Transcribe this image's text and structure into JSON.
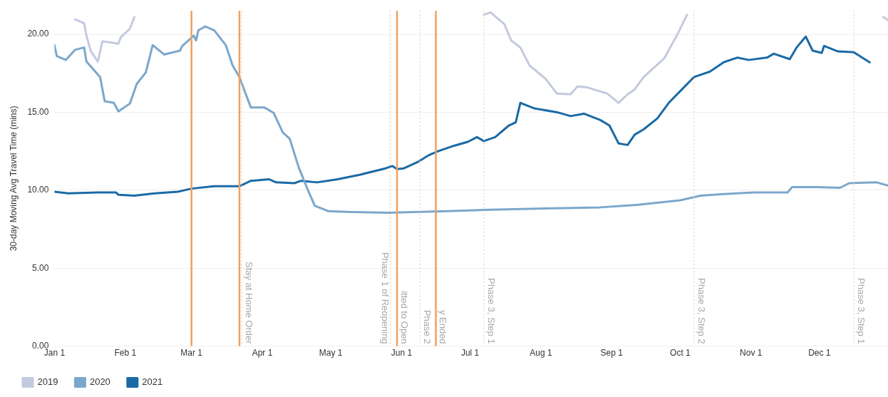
{
  "chart_data": {
    "type": "line",
    "ylabel": "30-day Moving Avg Travel Time (mins)",
    "xlim": [
      "--01-01",
      "--12-31"
    ],
    "xticks": [
      {
        "value": "--01-01",
        "label": "Jan 1"
      },
      {
        "value": "--02-01",
        "label": "Feb 1"
      },
      {
        "value": "--03-01",
        "label": "Mar 1"
      },
      {
        "value": "--04-01",
        "label": "Apr 1"
      },
      {
        "value": "--05-01",
        "label": "May 1"
      },
      {
        "value": "--06-01",
        "label": "Jun 1"
      },
      {
        "value": "--07-01",
        "label": "Jul 1"
      },
      {
        "value": "--08-01",
        "label": "Aug 1"
      },
      {
        "value": "--09-01",
        "label": "Sep 1"
      },
      {
        "value": "--10-01",
        "label": "Oct 1"
      },
      {
        "value": "--11-01",
        "label": "Nov 1"
      },
      {
        "value": "--12-01",
        "label": "Dec 1"
      }
    ],
    "ylim": [
      0,
      21.5
    ],
    "yticks": [
      {
        "value": 0,
        "label": "0.00"
      },
      {
        "value": 5,
        "label": "5.00"
      },
      {
        "value": 10,
        "label": "10.00"
      },
      {
        "value": 15,
        "label": "15.00"
      },
      {
        "value": 20,
        "label": "20.00"
      }
    ],
    "grid": "y",
    "legend": "bottom left",
    "marker": "none",
    "line_style": "solid",
    "series": [
      {
        "name": "2019",
        "color": "#c3cadf",
        "x": [
          "--01-10",
          "--01-14",
          "--01-15",
          "--01-17",
          "--01-20",
          "--01-22",
          "--01-29",
          "--01-30",
          "--02-03",
          "--02-05",
          "--03-01",
          "--07-07",
          "--07-10",
          "--07-16",
          "--07-19",
          "--07-23",
          "--07-27",
          "--08-03",
          "--08-08",
          "--08-14",
          "--08-17",
          "--08-21",
          "--08-30",
          "--09-04",
          "--09-08",
          "--09-11",
          "--09-15",
          "--09-24",
          "--09-30",
          "--10-04",
          "--11-01",
          "--12-29",
          "--12-31"
        ],
        "values": [
          20.95,
          20.7,
          19.9,
          18.9,
          18.25,
          19.55,
          19.4,
          19.8,
          20.35,
          21.1,
          null,
          21.25,
          21.4,
          20.65,
          19.6,
          19.15,
          18.0,
          17.15,
          16.2,
          16.15,
          16.65,
          16.6,
          16.2,
          15.6,
          16.15,
          16.45,
          17.25,
          18.45,
          20.05,
          21.25,
          null,
          21.1,
          20.9
        ]
      },
      {
        "name": "2020",
        "color": "#7ba7cc",
        "x": [
          "--01-01",
          "--01-02",
          "--01-06",
          "--01-10",
          "--01-14",
          "--01-15",
          "--01-21",
          "--01-23",
          "--01-27",
          "--01-29",
          "--02-03",
          "--02-06",
          "--02-10",
          "--02-13",
          "--02-18",
          "--02-25",
          "--02-26",
          "--03-02",
          "--03-03",
          "--03-04",
          "--03-07",
          "--03-11",
          "--03-16",
          "--03-19",
          "--03-22",
          "--03-27",
          "--04-02",
          "--04-06",
          "--04-10",
          "--04-13",
          "--04-17",
          "--04-21",
          "--04-24",
          "--04-30",
          "--05-10",
          "--05-26",
          "--06-21",
          "--07-10",
          "--08-11",
          "--08-27",
          "--09-12",
          "--10-01",
          "--10-10",
          "--10-20",
          "--11-02",
          "--11-17",
          "--11-19",
          "--11-30",
          "--12-10",
          "--12-14",
          "--12-26",
          "--12-31"
        ],
        "values": [
          19.3,
          18.6,
          18.35,
          19.0,
          19.15,
          18.25,
          17.25,
          15.7,
          15.6,
          15.05,
          15.55,
          16.8,
          17.55,
          19.3,
          18.7,
          18.95,
          19.25,
          19.9,
          19.6,
          20.25,
          20.5,
          20.25,
          19.3,
          18.0,
          17.25,
          15.3,
          15.3,
          14.95,
          13.7,
          13.3,
          11.45,
          10.0,
          9.0,
          8.65,
          8.6,
          8.55,
          8.65,
          8.75,
          8.85,
          8.9,
          9.05,
          9.35,
          9.65,
          9.75,
          9.85,
          9.85,
          10.2,
          10.2,
          10.15,
          10.45,
          10.5,
          10.3
        ]
      },
      {
        "name": "2021",
        "color": "#1a6aa5",
        "x": [
          "--01-01",
          "--01-07",
          "--01-20",
          "--01-28",
          "--01-29",
          "--02-05",
          "--02-14",
          "--02-24",
          "--03-01",
          "--03-11",
          "--03-22",
          "--03-27",
          "--04-04",
          "--04-07",
          "--04-15",
          "--04-18",
          "--04-25",
          "--05-04",
          "--05-14",
          "--05-25",
          "--05-28",
          "--05-30",
          "--06-02",
          "--06-08",
          "--06-13",
          "--06-17",
          "--06-24",
          "--06-30",
          "--07-04",
          "--07-07",
          "--07-12",
          "--07-18",
          "--07-21",
          "--07-23",
          "--07-29",
          "--08-08",
          "--08-14",
          "--08-20",
          "--08-27",
          "--08-31",
          "--09-04",
          "--09-08",
          "--09-11",
          "--09-15",
          "--09-21",
          "--09-26",
          "--10-01",
          "--10-07",
          "--10-14",
          "--10-20",
          "--10-26",
          "--10-31",
          "--11-08",
          "--11-11",
          "--11-18",
          "--11-21",
          "--11-25",
          "--11-28",
          "--12-02",
          "--12-03",
          "--12-09",
          "--12-16",
          "--12-23"
        ],
        "values": [
          9.9,
          9.8,
          9.85,
          9.85,
          9.7,
          9.65,
          9.8,
          9.9,
          10.1,
          10.25,
          10.25,
          10.6,
          10.7,
          10.5,
          10.45,
          10.6,
          10.5,
          10.7,
          11.0,
          11.4,
          11.55,
          11.35,
          11.4,
          11.8,
          12.25,
          12.5,
          12.85,
          13.1,
          13.4,
          13.15,
          13.4,
          14.15,
          14.35,
          15.6,
          15.25,
          15.0,
          14.75,
          14.9,
          14.5,
          14.15,
          13.0,
          12.9,
          13.55,
          13.9,
          14.6,
          15.6,
          16.35,
          17.25,
          17.6,
          18.2,
          18.5,
          18.35,
          18.5,
          18.75,
          18.4,
          19.15,
          19.85,
          18.95,
          18.8,
          19.25,
          18.9,
          18.85,
          18.2
        ]
      }
    ],
    "ref_lines": [
      {
        "axis": "x",
        "value": "--03-01",
        "color": "#f0a060",
        "line_style": "solid"
      },
      {
        "axis": "x",
        "value": "--03-22",
        "color": "#f0a060",
        "line_style": "solid"
      },
      {
        "axis": "x",
        "value": "--03-23",
        "label": "Stay at Home Order",
        "color": "#f8cfa8",
        "line_style": "dotted"
      },
      {
        "axis": "x",
        "value": "--05-27",
        "label": "Phase 1 of Reopening",
        "color": "#f8cfa8",
        "line_style": "dotted"
      },
      {
        "axis": "x",
        "value": "--05-30",
        "label": "itted to Open",
        "color": "#f0a060",
        "line_style": "solid"
      },
      {
        "axis": "x",
        "value": "--06-09",
        "label": "Phase 2",
        "color": "#f8cfa8",
        "line_style": "dotted"
      },
      {
        "axis": "x",
        "value": "--06-16",
        "label": "y Ended",
        "color": "#f0a060",
        "line_style": "solid"
      },
      {
        "axis": "x",
        "value": "--07-07",
        "label": "Phase 3, Step 1",
        "color": "#f8cfa8",
        "line_style": "dotted"
      },
      {
        "axis": "x",
        "value": "--10-07",
        "label": "Phase 3, Step 2",
        "color": "#f8cfa8",
        "line_style": "dotted"
      },
      {
        "axis": "x",
        "value": "--12-16",
        "label": "Phase 3, Step 1",
        "color": "#f8cfa8",
        "line_style": "dotted"
      }
    ]
  }
}
